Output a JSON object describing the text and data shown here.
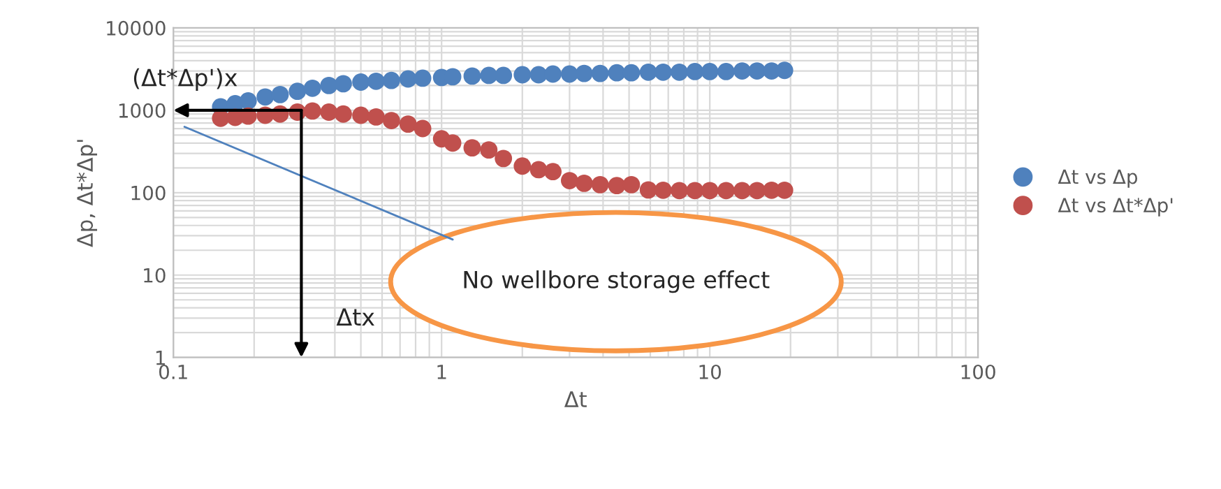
{
  "chart_data": {
    "type": "scatter",
    "xlabel": "Δt",
    "ylabel": "Δp, Δt*Δp'",
    "log": "xy",
    "grid": true,
    "legend": "right",
    "marker": "circle",
    "x": [
      0.15,
      0.17,
      0.19,
      0.22,
      0.25,
      0.29,
      0.33,
      0.38,
      0.43,
      0.5,
      0.57,
      0.65,
      0.75,
      0.85,
      1.0,
      1.1,
      1.3,
      1.5,
      1.7,
      2.0,
      2.3,
      2.6,
      3.0,
      3.4,
      3.9,
      4.5,
      5.1,
      5.9,
      6.7,
      7.7,
      8.8,
      10,
      11.5,
      13.2,
      15,
      17,
      19
    ],
    "series": [
      {
        "name": "Δt vs Δp",
        "color": "#4f81bd",
        "values": [
          1100,
          1200,
          1300,
          1450,
          1550,
          1700,
          1850,
          2000,
          2100,
          2200,
          2250,
          2300,
          2400,
          2450,
          2500,
          2550,
          2600,
          2650,
          2650,
          2700,
          2700,
          2750,
          2750,
          2800,
          2800,
          2850,
          2850,
          2900,
          2900,
          2900,
          2950,
          2950,
          2950,
          3000,
          3000,
          3000,
          3050
        ]
      },
      {
        "name": "Δt vs Δt*Δp'",
        "color": "#c0504d",
        "values": [
          800,
          820,
          850,
          870,
          900,
          950,
          980,
          950,
          900,
          870,
          830,
          750,
          680,
          600,
          450,
          400,
          350,
          330,
          260,
          210,
          190,
          180,
          140,
          130,
          125,
          122,
          125,
          108,
          107,
          106,
          106,
          106,
          106,
          106,
          106,
          107,
          107
        ]
      },
      {
        "type": "line",
        "marker": "none",
        "color": "#4f81bd",
        "x": [
          0.11,
          1.1
        ],
        "values": [
          630,
          27
        ]
      }
    ],
    "xlim": [
      0.1,
      100
    ],
    "ylim": [
      1,
      10000
    ],
    "xticks": [
      0.1,
      1,
      10,
      100
    ],
    "yticks": [
      1,
      10,
      100,
      1000,
      10000
    ],
    "annotations": [
      {
        "text": "(Δt*Δp')x",
        "x": 0.3,
        "y": 1000
      },
      "Δtx",
      "No wellbore storage effect"
    ]
  }
}
